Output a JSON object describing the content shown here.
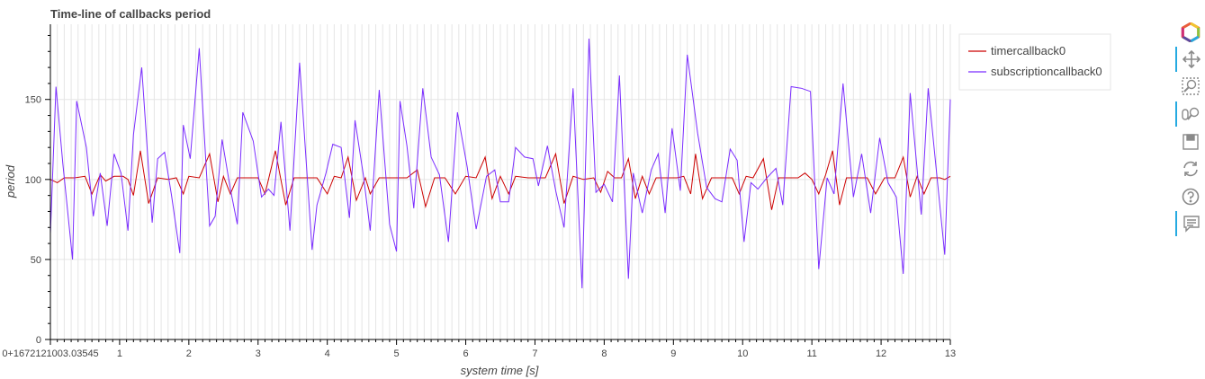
{
  "chart_data": {
    "type": "line",
    "title": "Time-line of callbacks period",
    "xlabel": "system time [s]",
    "ylabel": "period",
    "x_offset_label": "0+1672121003.03545",
    "xlim": [
      0,
      13
    ],
    "ylim": [
      0,
      197
    ],
    "xticks": [
      1,
      2,
      3,
      4,
      5,
      6,
      7,
      8,
      9,
      10,
      11,
      12,
      13
    ],
    "yticks": [
      0,
      50,
      100,
      150
    ],
    "grid": true,
    "legend_position": "right",
    "series": [
      {
        "name": "timercallback0",
        "color": "#cc0000",
        "points": [
          [
            0.0,
            100
          ],
          [
            0.1,
            98
          ],
          [
            0.2,
            101
          ],
          [
            0.35,
            101
          ],
          [
            0.5,
            102
          ],
          [
            0.6,
            91
          ],
          [
            0.72,
            103
          ],
          [
            0.8,
            99
          ],
          [
            0.92,
            102
          ],
          [
            1.05,
            102
          ],
          [
            1.12,
            100
          ],
          [
            1.2,
            90
          ],
          [
            1.3,
            118
          ],
          [
            1.42,
            85
          ],
          [
            1.55,
            101
          ],
          [
            1.7,
            100
          ],
          [
            1.82,
            101
          ],
          [
            1.92,
            91
          ],
          [
            2.0,
            102
          ],
          [
            2.15,
            101
          ],
          [
            2.3,
            116
          ],
          [
            2.42,
            86
          ],
          [
            2.5,
            102
          ],
          [
            2.6,
            91
          ],
          [
            2.7,
            101
          ],
          [
            2.85,
            101
          ],
          [
            3.0,
            101
          ],
          [
            3.1,
            91
          ],
          [
            3.25,
            118
          ],
          [
            3.4,
            84
          ],
          [
            3.52,
            101
          ],
          [
            3.7,
            101
          ],
          [
            3.85,
            101
          ],
          [
            4.0,
            91
          ],
          [
            4.1,
            102
          ],
          [
            4.2,
            101
          ],
          [
            4.3,
            114
          ],
          [
            4.42,
            87
          ],
          [
            4.55,
            101
          ],
          [
            4.62,
            91
          ],
          [
            4.75,
            101
          ],
          [
            4.9,
            101
          ],
          [
            5.05,
            101
          ],
          [
            5.15,
            101
          ],
          [
            5.3,
            106
          ],
          [
            5.42,
            83
          ],
          [
            5.55,
            101
          ],
          [
            5.7,
            101
          ],
          [
            5.85,
            91
          ],
          [
            6.0,
            102
          ],
          [
            6.15,
            101
          ],
          [
            6.28,
            114
          ],
          [
            6.38,
            88
          ],
          [
            6.5,
            102
          ],
          [
            6.62,
            91
          ],
          [
            6.72,
            102
          ],
          [
            6.9,
            101
          ],
          [
            7.05,
            101
          ],
          [
            7.15,
            101
          ],
          [
            7.3,
            116
          ],
          [
            7.42,
            85
          ],
          [
            7.55,
            102
          ],
          [
            7.7,
            100
          ],
          [
            7.85,
            101
          ],
          [
            7.95,
            92
          ],
          [
            8.05,
            105
          ],
          [
            8.15,
            101
          ],
          [
            8.25,
            101
          ],
          [
            8.35,
            113
          ],
          [
            8.45,
            88
          ],
          [
            8.55,
            102
          ],
          [
            8.65,
            91
          ],
          [
            8.75,
            101
          ],
          [
            8.9,
            101
          ],
          [
            9.05,
            101
          ],
          [
            9.15,
            102
          ],
          [
            9.25,
            91
          ],
          [
            9.32,
            116
          ],
          [
            9.42,
            88
          ],
          [
            9.55,
            101
          ],
          [
            9.7,
            101
          ],
          [
            9.85,
            101
          ],
          [
            9.95,
            91
          ],
          [
            10.05,
            102
          ],
          [
            10.15,
            101
          ],
          [
            10.3,
            113
          ],
          [
            10.42,
            81
          ],
          [
            10.52,
            101
          ],
          [
            10.65,
            101
          ],
          [
            10.8,
            101
          ],
          [
            10.9,
            104
          ],
          [
            11.0,
            100
          ],
          [
            11.1,
            91
          ],
          [
            11.2,
            103
          ],
          [
            11.3,
            118
          ],
          [
            11.4,
            84
          ],
          [
            11.5,
            101
          ],
          [
            11.65,
            101
          ],
          [
            11.8,
            101
          ],
          [
            11.92,
            91
          ],
          [
            12.05,
            101
          ],
          [
            12.2,
            101
          ],
          [
            12.32,
            114
          ],
          [
            12.42,
            89
          ],
          [
            12.52,
            102
          ],
          [
            12.62,
            91
          ],
          [
            12.72,
            101
          ],
          [
            12.85,
            101
          ],
          [
            12.92,
            100
          ],
          [
            13.0,
            102
          ]
        ]
      },
      {
        "name": "subscriptioncallback0",
        "color": "#7a2cff",
        "points": [
          [
            0.0,
            66
          ],
          [
            0.08,
            158
          ],
          [
            0.18,
            110
          ],
          [
            0.32,
            50
          ],
          [
            0.38,
            149
          ],
          [
            0.52,
            120
          ],
          [
            0.62,
            77
          ],
          [
            0.72,
            104
          ],
          [
            0.82,
            71
          ],
          [
            0.92,
            116
          ],
          [
            1.02,
            104
          ],
          [
            1.12,
            68
          ],
          [
            1.2,
            128
          ],
          [
            1.32,
            170
          ],
          [
            1.47,
            73
          ],
          [
            1.55,
            113
          ],
          [
            1.65,
            117
          ],
          [
            1.75,
            90
          ],
          [
            1.87,
            54
          ],
          [
            1.92,
            134
          ],
          [
            2.02,
            113
          ],
          [
            2.15,
            182
          ],
          [
            2.3,
            71
          ],
          [
            2.38,
            77
          ],
          [
            2.48,
            125
          ],
          [
            2.6,
            94
          ],
          [
            2.7,
            72
          ],
          [
            2.78,
            142
          ],
          [
            2.93,
            124
          ],
          [
            3.05,
            89
          ],
          [
            3.15,
            94
          ],
          [
            3.23,
            90
          ],
          [
            3.33,
            136
          ],
          [
            3.46,
            68
          ],
          [
            3.6,
            173
          ],
          [
            3.78,
            56
          ],
          [
            3.85,
            84
          ],
          [
            3.98,
            104
          ],
          [
            4.08,
            122
          ],
          [
            4.2,
            120
          ],
          [
            4.32,
            76
          ],
          [
            4.4,
            137
          ],
          [
            4.52,
            103
          ],
          [
            4.62,
            68
          ],
          [
            4.75,
            156
          ],
          [
            4.9,
            72
          ],
          [
            5.0,
            55
          ],
          [
            5.05,
            149
          ],
          [
            5.15,
            121
          ],
          [
            5.25,
            82
          ],
          [
            5.38,
            157
          ],
          [
            5.5,
            114
          ],
          [
            5.62,
            103
          ],
          [
            5.75,
            61
          ],
          [
            5.88,
            142
          ],
          [
            6.02,
            108
          ],
          [
            6.15,
            69
          ],
          [
            6.3,
            102
          ],
          [
            6.42,
            106
          ],
          [
            6.5,
            86
          ],
          [
            6.62,
            86
          ],
          [
            6.72,
            120
          ],
          [
            6.85,
            114
          ],
          [
            6.97,
            113
          ],
          [
            7.05,
            96
          ],
          [
            7.18,
            121
          ],
          [
            7.3,
            93
          ],
          [
            7.42,
            70
          ],
          [
            7.55,
            157
          ],
          [
            7.68,
            32
          ],
          [
            7.78,
            188
          ],
          [
            7.88,
            92
          ],
          [
            8.0,
            97
          ],
          [
            8.12,
            86
          ],
          [
            8.22,
            165
          ],
          [
            8.35,
            38
          ],
          [
            8.42,
            104
          ],
          [
            8.55,
            79
          ],
          [
            8.68,
            106
          ],
          [
            8.78,
            116
          ],
          [
            8.88,
            79
          ],
          [
            8.98,
            132
          ],
          [
            9.1,
            93
          ],
          [
            9.2,
            178
          ],
          [
            9.35,
            129
          ],
          [
            9.48,
            95
          ],
          [
            9.6,
            88
          ],
          [
            9.7,
            86
          ],
          [
            9.82,
            119
          ],
          [
            9.92,
            112
          ],
          [
            10.02,
            61
          ],
          [
            10.12,
            98
          ],
          [
            10.22,
            94
          ],
          [
            10.35,
            101
          ],
          [
            10.48,
            107
          ],
          [
            10.58,
            84
          ],
          [
            10.7,
            158
          ],
          [
            10.85,
            157
          ],
          [
            10.98,
            155
          ],
          [
            11.1,
            44
          ],
          [
            11.22,
            101
          ],
          [
            11.32,
            91
          ],
          [
            11.45,
            160
          ],
          [
            11.6,
            89
          ],
          [
            11.72,
            116
          ],
          [
            11.85,
            79
          ],
          [
            11.98,
            126
          ],
          [
            12.1,
            98
          ],
          [
            12.22,
            89
          ],
          [
            12.32,
            41
          ],
          [
            12.42,
            154
          ],
          [
            12.58,
            78
          ],
          [
            12.68,
            157
          ],
          [
            12.82,
            96
          ],
          [
            12.92,
            53
          ],
          [
            13.0,
            150
          ]
        ]
      }
    ]
  },
  "toolbar": {
    "tools": [
      {
        "name": "bokeh-logo-icon",
        "active": false
      },
      {
        "name": "pan-icon",
        "active": true
      },
      {
        "name": "box-zoom-icon",
        "active": false
      },
      {
        "name": "wheel-zoom-icon",
        "active": true
      },
      {
        "name": "save-icon",
        "active": false
      },
      {
        "name": "reset-icon",
        "active": false
      },
      {
        "name": "help-icon",
        "active": false
      },
      {
        "name": "hover-icon",
        "active": true
      }
    ]
  }
}
